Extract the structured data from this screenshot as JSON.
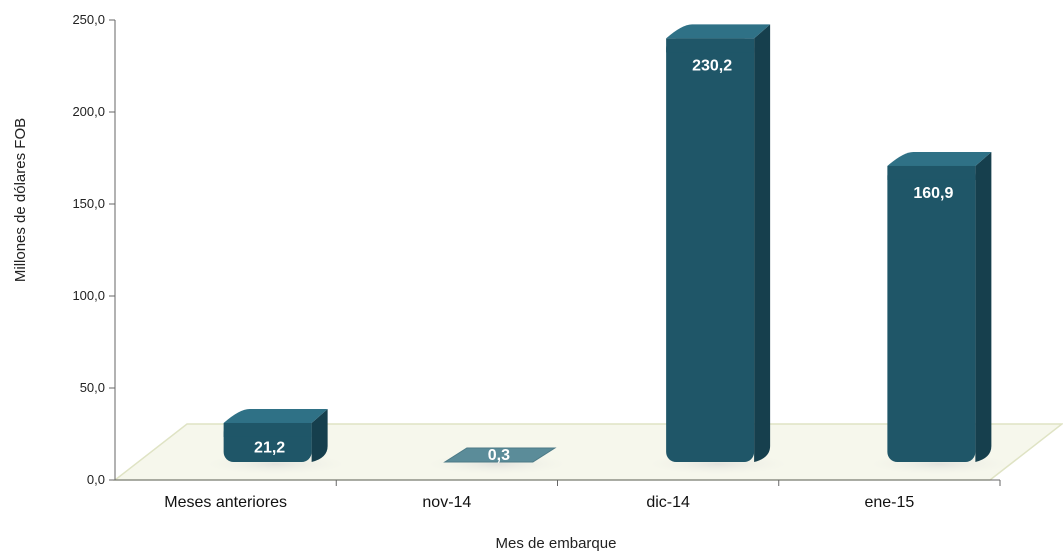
{
  "chart_data": {
    "type": "bar",
    "categories": [
      "Meses anteriores",
      "nov-14",
      "dic-14",
      "ene-15"
    ],
    "values": [
      21.2,
      0.3,
      230.2,
      160.9
    ],
    "data_labels": [
      "21,2",
      "0,3",
      "230,2",
      "160,9"
    ],
    "title": "",
    "xlabel": "Mes de embarque",
    "ylabel": "Millones de dólares FOB",
    "ylim": [
      0,
      250
    ],
    "yticks": [
      0,
      50,
      100,
      150,
      200,
      250
    ],
    "ytick_labels": [
      "0,0",
      "50,0",
      "100,0",
      "150,0",
      "200,0",
      "250,0"
    ],
    "grid": false,
    "legend": "none",
    "style": "3d-cylinder"
  },
  "colors": {
    "bar_front": "#1f5668",
    "bar_side": "#163f4d",
    "bar_top": "#2f7186",
    "bar_small": "#5b8c99",
    "floor": "#f6f7ec",
    "floor_edge": "#dfe3c4",
    "axis": "#666666"
  }
}
